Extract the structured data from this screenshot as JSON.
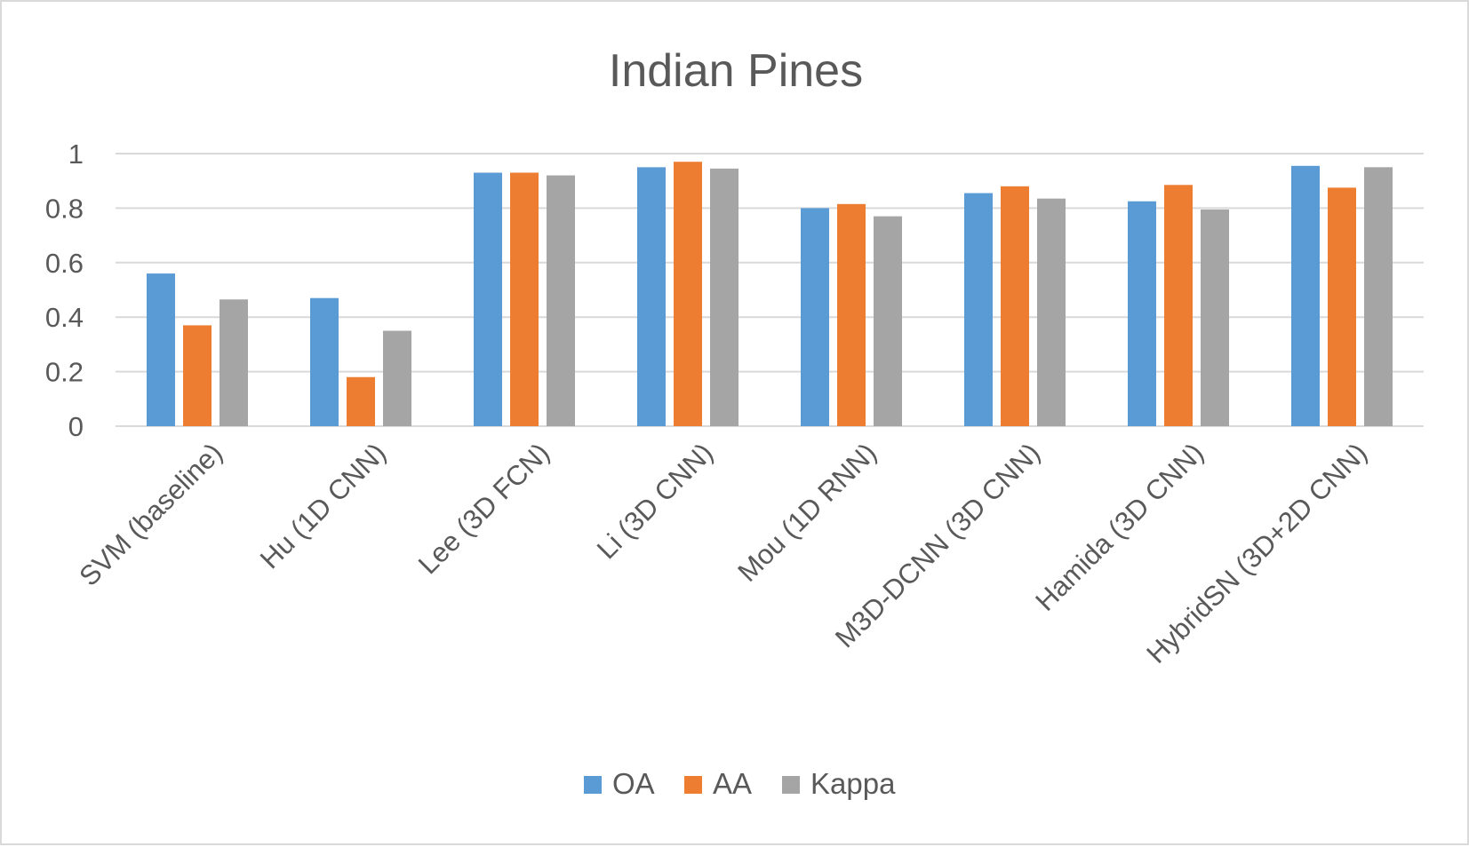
{
  "chart_data": {
    "type": "bar",
    "title": "Indian Pines",
    "categories": [
      "SVM (baseline)",
      "Hu (1D CNN)",
      "Lee (3D FCN)",
      "Li (3D CNN)",
      "Mou (1D RNN)",
      "M3D-DCNN (3D CNN)",
      "Hamida (3D CNN)",
      "HybridSN (3D+2D CNN)"
    ],
    "series": [
      {
        "name": "OA",
        "color": "#5b9bd5",
        "values": [
          0.56,
          0.47,
          0.93,
          0.95,
          0.8,
          0.855,
          0.825,
          0.955
        ]
      },
      {
        "name": "AA",
        "color": "#ed7d31",
        "values": [
          0.37,
          0.18,
          0.93,
          0.97,
          0.815,
          0.88,
          0.885,
          0.875
        ]
      },
      {
        "name": "Kappa",
        "color": "#a5a5a5",
        "values": [
          0.465,
          0.35,
          0.92,
          0.945,
          0.77,
          0.835,
          0.795,
          0.95
        ]
      }
    ],
    "y_ticks": [
      "0",
      "0.2",
      "0.4",
      "0.6",
      "0.8",
      "1"
    ],
    "ylim": [
      0,
      1
    ],
    "xlabel": "",
    "ylabel": "",
    "grid": true,
    "legend_position": "bottom"
  }
}
